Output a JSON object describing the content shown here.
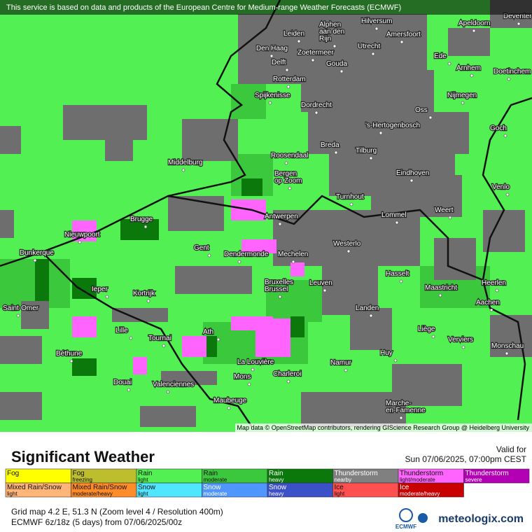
{
  "header": {
    "notice": "This service is based on data and products of the European Centre for Medium-range Weather Forecasts (ECMWF)"
  },
  "map": {
    "attribution": "Map data © OpenStreetMap contributors, rendering GIScience Research Group @ Heidelberg University",
    "cities": [
      [
        "Hilversum"
      ],
      [
        "Deventer"
      ],
      [
        "Apeldoorn"
      ],
      [
        "Leiden"
      ],
      [
        "Alphen",
        "aan den",
        "Rijn"
      ],
      [
        "Amersfoort"
      ],
      [
        "Den Haag"
      ],
      [
        "Zoetermeer"
      ],
      [
        "Utrecht"
      ],
      [
        "Ede"
      ],
      [
        "Delft"
      ],
      [
        "Gouda"
      ],
      [
        "Arnhem"
      ],
      [
        "Doetinchem"
      ],
      [
        "Rotterdam"
      ],
      [
        "Spijkenisse"
      ],
      [
        "Nijmegen"
      ],
      [
        "Dordrecht"
      ],
      [
        "Oss"
      ],
      [
        "'s-Hertogenbosch"
      ],
      [
        "Goch"
      ],
      [
        "Breda"
      ],
      [
        "Roosendaal"
      ],
      [
        "Tilburg"
      ],
      [
        "Middelburg"
      ],
      [
        "Bergen",
        "op Zoom"
      ],
      [
        "Eindhoven"
      ],
      [
        "Venlo"
      ],
      [
        "Turnhout"
      ],
      [
        "Antwerpen"
      ],
      [
        "Weert"
      ],
      [
        "Brugge"
      ],
      [
        "Lommel"
      ],
      [
        "Nieuwpoort"
      ],
      [
        "Westerlo"
      ],
      [
        "Gent"
      ],
      [
        "Dendermonde"
      ],
      [
        "Mechelen"
      ],
      [
        "Dunkerque"
      ],
      [
        "Hasselt"
      ],
      [
        "Ieper"
      ],
      [
        "Bruxelles",
        "Brussel"
      ],
      [
        "Leuven"
      ],
      [
        "Maastricht"
      ],
      [
        "Heerlen"
      ],
      [
        "Kortrijk"
      ],
      [
        "Aachen"
      ],
      [
        "Saint-Omer"
      ],
      [
        "Landen"
      ],
      [
        "Lille"
      ],
      [
        "Liège"
      ],
      [
        "Tournai"
      ],
      [
        "Ath"
      ],
      [
        "Verviers"
      ],
      [
        "Monschau"
      ],
      [
        "Huy"
      ],
      [
        "Béthune"
      ],
      [
        "La Louvière"
      ],
      [
        "Namur"
      ],
      [
        "Charleroi"
      ],
      [
        "Mons"
      ],
      [
        "Douai"
      ],
      [
        "Valenciennes"
      ],
      [
        "Maubeuge"
      ],
      [
        "Marche-",
        "en-Famenne"
      ]
    ]
  },
  "legend": {
    "title": "Significant Weather",
    "valid_label": "Valid for",
    "valid_time": "Sun 07/06/2025, 07:00pm CEST",
    "rows": [
      [
        {
          "label": "Fog",
          "color": "#ffff00"
        },
        {
          "label": "Fog",
          "sub": "freezing",
          "color": "#bdbd2e"
        },
        {
          "label": "Rain",
          "sub": "light",
          "color": "#52f052"
        },
        {
          "label": "Rain",
          "sub": "moderate",
          "color": "#3cc83c"
        },
        {
          "label": "Rain",
          "sub": "heavy",
          "color": "#0a780a"
        },
        {
          "label": "Thunderstorm",
          "sub": "nearby",
          "color": "#808080"
        },
        {
          "label": "Thunderstorm",
          "sub": "light/moderate",
          "color": "#ff64ff"
        },
        {
          "label": "Thunderstorm",
          "sub": "severe",
          "color": "#b400b4"
        }
      ],
      [
        {
          "label": "Mixed Rain/Snow",
          "sub": "light",
          "color": "#ffb478"
        },
        {
          "label": "Mixed Rain/Snow",
          "sub": "moderate/heavy",
          "color": "#ff8c28"
        },
        {
          "label": "Snow",
          "sub": "light",
          "color": "#50e6ff"
        },
        {
          "label": "Snow",
          "sub": "moderate",
          "color": "#5096ff"
        },
        {
          "label": "Snow",
          "sub": "heavy",
          "color": "#3c50c8"
        },
        {
          "label": "Ice",
          "sub": "light",
          "color": "#ff5050"
        },
        {
          "label": "Ice",
          "sub": "moderate/heavy",
          "color": "#c80000"
        }
      ]
    ]
  },
  "footer": {
    "grid": "Grid map 4.2 E, 51.3 N (Zoom level 4 / Resolution 400m)",
    "model": "ECMWF 6z/18z (5 days) from 07/06/2025/00z",
    "ecmwf": "ECMWF",
    "brand": "meteologix.com"
  }
}
